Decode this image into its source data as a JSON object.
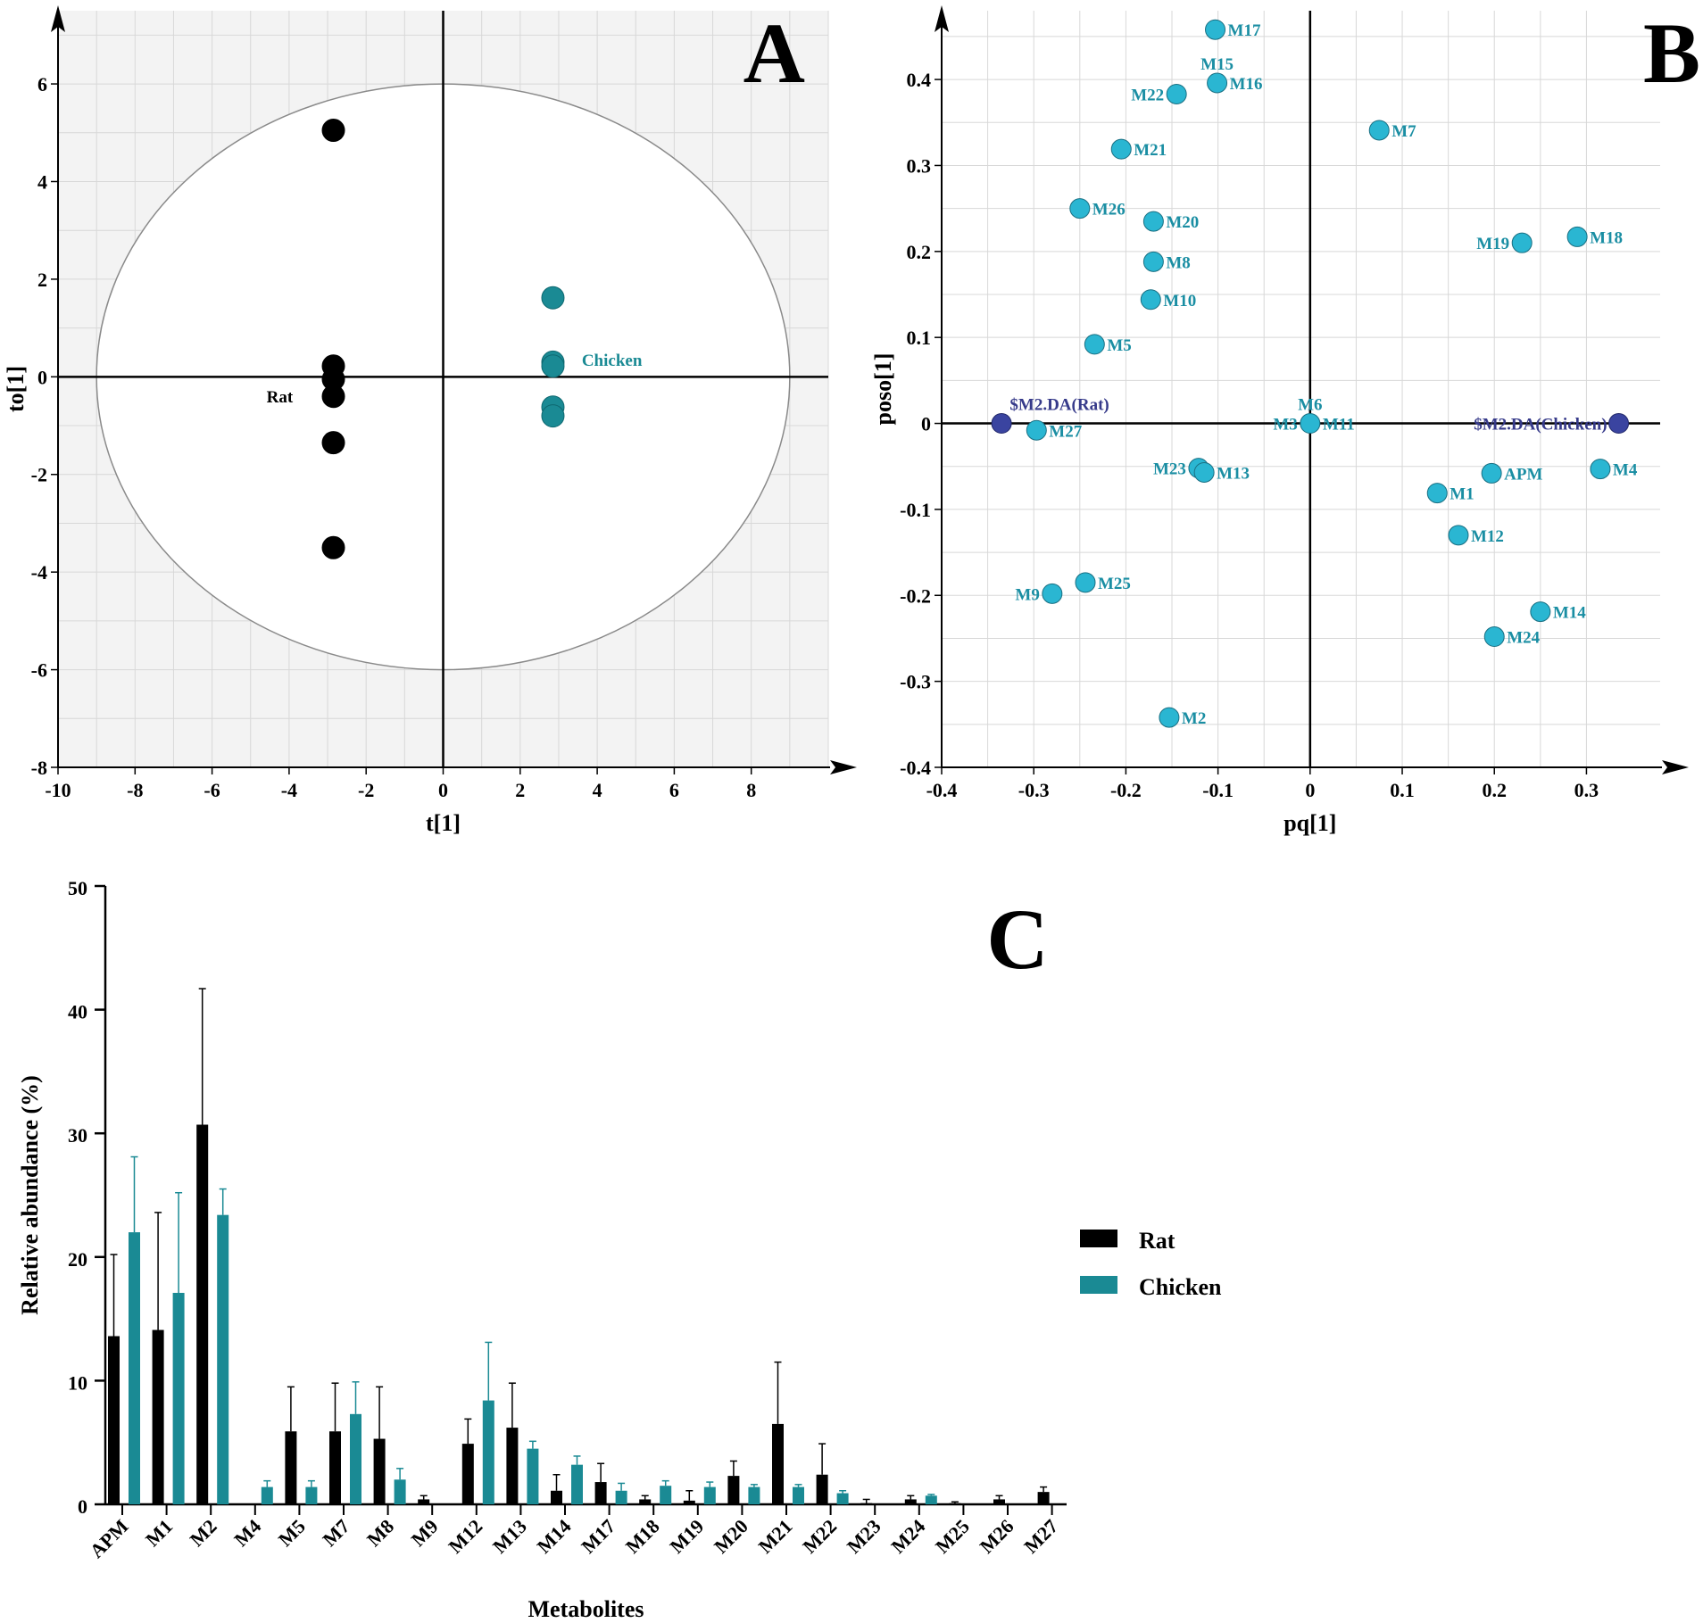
{
  "colors": {
    "rat": "#000000",
    "chicken": "#1a8a94",
    "metabolite": "#2ab6d2",
    "metabolite_label": "#1a8ea3",
    "da": "#3a44a0",
    "da_label": "#363a8a"
  },
  "chart_data": [
    {
      "panel": "A",
      "type": "scatter",
      "xlabel": "t[1]",
      "ylabel": "to[1]",
      "xlim": [
        -10,
        10
      ],
      "ylim": [
        -8,
        7.5
      ],
      "xticks": [
        -10,
        -8,
        -6,
        -4,
        -2,
        0,
        2,
        4,
        6,
        8
      ],
      "yticks": [
        -8,
        -6,
        -4,
        -2,
        0,
        2,
        4,
        6
      ],
      "ellipse": {
        "cx": 0,
        "cy": 0,
        "rx": 9.0,
        "ry": 6.0
      },
      "series": [
        {
          "name": "Rat",
          "label_at": {
            "x": -3.9,
            "y": -0.4
          },
          "points": [
            [
              -2.85,
              5.05
            ],
            [
              -2.85,
              0.22
            ],
            [
              -2.85,
              -0.05
            ],
            [
              -2.85,
              -0.4
            ],
            [
              -2.85,
              -1.35
            ],
            [
              -2.85,
              -3.5
            ]
          ]
        },
        {
          "name": "Chicken",
          "label_at": {
            "x": 3.6,
            "y": 0.35
          },
          "points": [
            [
              2.85,
              1.62
            ],
            [
              2.85,
              0.3
            ],
            [
              2.85,
              0.22
            ],
            [
              2.85,
              -0.62
            ],
            [
              2.85,
              -0.8
            ]
          ]
        }
      ]
    },
    {
      "panel": "B",
      "type": "scatter",
      "xlabel": "pq[1]",
      "ylabel": "poso[1]",
      "xlim": [
        -0.4,
        0.38
      ],
      "ylim": [
        -0.4,
        0.48
      ],
      "xticks": [
        -0.4,
        -0.3,
        -0.2,
        -0.1,
        0,
        0.1,
        0.2,
        0.3
      ],
      "xtick_labels": [
        "-0.4",
        "-0.3",
        "-0.2",
        "-0.1",
        "0",
        "0.1",
        "0.2",
        "0.3"
      ],
      "yticks": [
        -0.4,
        -0.3,
        -0.2,
        -0.1,
        0,
        0.1,
        0.2,
        0.3,
        0.4
      ],
      "ytick_labels": [
        "-0.4",
        "-0.3",
        "-0.2",
        "-0.1",
        "0",
        "0.1",
        "0.2",
        "0.3",
        "0.4"
      ],
      "points": [
        {
          "label": "M17",
          "x": -0.103,
          "y": 0.458,
          "pos": "right"
        },
        {
          "label": "M15",
          "x": -0.101,
          "y": 0.396,
          "pos": "above"
        },
        {
          "label": "M16",
          "x": -0.101,
          "y": 0.396,
          "pos": "right"
        },
        {
          "label": "M22",
          "x": -0.145,
          "y": 0.383,
          "pos": "left"
        },
        {
          "label": "M7",
          "x": 0.075,
          "y": 0.341,
          "pos": "right"
        },
        {
          "label": "M21",
          "x": -0.205,
          "y": 0.319,
          "pos": "right"
        },
        {
          "label": "M26",
          "x": -0.25,
          "y": 0.25,
          "pos": "right"
        },
        {
          "label": "M20",
          "x": -0.17,
          "y": 0.235,
          "pos": "right"
        },
        {
          "label": "M19",
          "x": 0.23,
          "y": 0.21,
          "pos": "left"
        },
        {
          "label": "M18",
          "x": 0.29,
          "y": 0.217,
          "pos": "right"
        },
        {
          "label": "M8",
          "x": -0.17,
          "y": 0.188,
          "pos": "right"
        },
        {
          "label": "M10",
          "x": -0.173,
          "y": 0.144,
          "pos": "right"
        },
        {
          "label": "M5",
          "x": -0.234,
          "y": 0.092,
          "pos": "right"
        },
        {
          "label": "M6",
          "x": 0.0,
          "y": 0.0,
          "pos": "above"
        },
        {
          "label": "M3",
          "x": 0.0,
          "y": 0.0,
          "pos": "left"
        },
        {
          "label": "M11",
          "x": 0.0,
          "y": 0.0,
          "pos": "right"
        },
        {
          "label": "M27",
          "x": -0.297,
          "y": -0.008,
          "pos": "right"
        },
        {
          "label": "M23",
          "x": -0.121,
          "y": -0.052,
          "pos": "left"
        },
        {
          "label": "M13",
          "x": -0.115,
          "y": -0.057,
          "pos": "right"
        },
        {
          "label": "APM",
          "x": 0.197,
          "y": -0.058,
          "pos": "right"
        },
        {
          "label": "M4",
          "x": 0.315,
          "y": -0.053,
          "pos": "right"
        },
        {
          "label": "M1",
          "x": 0.138,
          "y": -0.081,
          "pos": "right"
        },
        {
          "label": "M12",
          "x": 0.161,
          "y": -0.13,
          "pos": "right"
        },
        {
          "label": "M9",
          "x": -0.28,
          "y": -0.198,
          "pos": "left"
        },
        {
          "label": "M25",
          "x": -0.244,
          "y": -0.185,
          "pos": "right"
        },
        {
          "label": "M14",
          "x": 0.25,
          "y": -0.219,
          "pos": "right"
        },
        {
          "label": "M24",
          "x": 0.2,
          "y": -0.248,
          "pos": "right"
        },
        {
          "label": "M2",
          "x": -0.153,
          "y": -0.342,
          "pos": "right"
        }
      ],
      "da_points": [
        {
          "label": "$M2.DA(Rat)",
          "x": -0.335,
          "y": 0.0,
          "pos": "above"
        },
        {
          "label": "$M2.DA(Chicken)",
          "x": 0.335,
          "y": 0.0,
          "pos": "left"
        }
      ]
    },
    {
      "panel": "C",
      "type": "bar",
      "xlabel": "Metabolites",
      "ylabel": "Relative abundance (%)",
      "ylim": [
        0,
        50
      ],
      "yticks": [
        0,
        10,
        20,
        30,
        40,
        50
      ],
      "categories": [
        "APM",
        "M1",
        "M2",
        "M4",
        "M5",
        "M7",
        "M8",
        "M9",
        "M12",
        "M13",
        "M14",
        "M17",
        "M18",
        "M19",
        "M20",
        "M21",
        "M22",
        "M23",
        "M24",
        "M25",
        "M26",
        "M27"
      ],
      "series": [
        {
          "name": "Rat",
          "values": [
            13.6,
            14.1,
            30.7,
            0,
            5.9,
            5.9,
            5.3,
            0.4,
            4.9,
            6.2,
            1.1,
            1.8,
            0.4,
            0.3,
            2.3,
            6.5,
            2.4,
            0.1,
            0.4,
            0.1,
            0.4,
            1.0
          ],
          "errors": [
            6.6,
            9.5,
            11.0,
            0,
            3.6,
            3.9,
            4.2,
            0.3,
            2.0,
            3.6,
            1.3,
            1.5,
            0.3,
            0.8,
            1.2,
            5.0,
            2.5,
            0.3,
            0.3,
            0.1,
            0.3,
            0.4
          ]
        },
        {
          "name": "Chicken",
          "values": [
            22.0,
            17.1,
            23.4,
            1.4,
            1.4,
            7.3,
            2.0,
            0,
            8.4,
            4.5,
            3.2,
            1.1,
            1.5,
            1.4,
            1.4,
            1.4,
            0.9,
            0,
            0.7,
            0,
            0,
            0
          ],
          "errors": [
            6.1,
            8.1,
            2.1,
            0.5,
            0.5,
            2.6,
            0.9,
            0,
            4.7,
            0.6,
            0.7,
            0.6,
            0.4,
            0.4,
            0.2,
            0.2,
            0.2,
            0,
            0.1,
            0,
            0,
            0
          ]
        }
      ]
    }
  ]
}
